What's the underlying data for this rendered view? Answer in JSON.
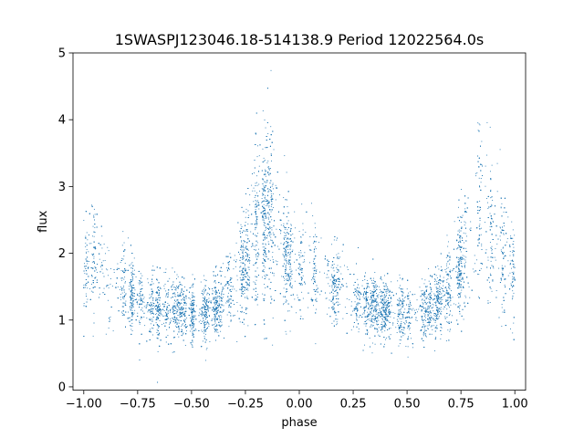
{
  "chart_data": {
    "type": "scatter",
    "title": "1SWASPJ123046.18-514138.9 Period 12022564.0s",
    "xlabel": "phase",
    "ylabel": "flux",
    "xlim": [
      -1.05,
      1.05
    ],
    "ylim": [
      -0.05,
      5.0
    ],
    "xticks": [
      -1.0,
      -0.75,
      -0.5,
      -0.25,
      0.0,
      0.25,
      0.5,
      0.75,
      1.0
    ],
    "xtick_labels": [
      "−1.00",
      "−0.75",
      "−0.50",
      "−0.25",
      "0.00",
      "0.25",
      "0.50",
      "0.75",
      "1.00"
    ],
    "yticks": [
      0,
      1,
      2,
      3,
      4,
      5
    ],
    "ytick_labels": [
      "0",
      "1",
      "2",
      "3",
      "4",
      "5"
    ],
    "grid": false,
    "marker_color": "#1f77b4",
    "series": [
      {
        "phase_range": [
          -1.0,
          1.0
        ],
        "approx_flux_median_profile": [
          {
            "phase": -1.0,
            "median_flux": 1.7
          },
          {
            "phase": -0.95,
            "median_flux": 1.9
          },
          {
            "phase": -0.9,
            "median_flux": 1.6
          },
          {
            "phase": -0.85,
            "median_flux": 1.5
          },
          {
            "phase": -0.8,
            "median_flux": 1.5
          },
          {
            "phase": -0.75,
            "median_flux": 1.3
          },
          {
            "phase": -0.7,
            "median_flux": 1.2
          },
          {
            "phase": -0.65,
            "median_flux": 1.2
          },
          {
            "phase": -0.6,
            "median_flux": 1.15
          },
          {
            "phase": -0.55,
            "median_flux": 1.15
          },
          {
            "phase": -0.5,
            "median_flux": 1.1
          },
          {
            "phase": -0.45,
            "median_flux": 1.1
          },
          {
            "phase": -0.4,
            "median_flux": 1.2
          },
          {
            "phase": -0.35,
            "median_flux": 1.3
          },
          {
            "phase": -0.3,
            "median_flux": 1.5
          },
          {
            "phase": -0.25,
            "median_flux": 1.8
          },
          {
            "phase": -0.2,
            "median_flux": 2.4
          },
          {
            "phase": -0.15,
            "median_flux": 2.7
          },
          {
            "phase": -0.1,
            "median_flux": 2.3
          },
          {
            "phase": -0.05,
            "median_flux": 1.9
          },
          {
            "phase": 0.0,
            "median_flux": 1.7
          },
          {
            "phase": 0.05,
            "median_flux": 1.9
          },
          {
            "phase": 0.1,
            "median_flux": 1.6
          },
          {
            "phase": 0.15,
            "median_flux": 1.5
          },
          {
            "phase": 0.2,
            "median_flux": 1.5
          },
          {
            "phase": 0.25,
            "median_flux": 1.3
          },
          {
            "phase": 0.3,
            "median_flux": 1.2
          },
          {
            "phase": 0.35,
            "median_flux": 1.2
          },
          {
            "phase": 0.4,
            "median_flux": 1.15
          },
          {
            "phase": 0.45,
            "median_flux": 1.15
          },
          {
            "phase": 0.5,
            "median_flux": 1.1
          },
          {
            "phase": 0.55,
            "median_flux": 1.1
          },
          {
            "phase": 0.6,
            "median_flux": 1.2
          },
          {
            "phase": 0.65,
            "median_flux": 1.3
          },
          {
            "phase": 0.7,
            "median_flux": 1.5
          },
          {
            "phase": 0.75,
            "median_flux": 1.8
          },
          {
            "phase": 0.8,
            "median_flux": 2.4
          },
          {
            "phase": 0.85,
            "median_flux": 2.7
          },
          {
            "phase": 0.9,
            "median_flux": 2.3
          },
          {
            "phase": 0.95,
            "median_flux": 1.9
          },
          {
            "phase": 1.0,
            "median_flux": 1.7
          }
        ],
        "approx_point_count": 12000
      }
    ]
  }
}
